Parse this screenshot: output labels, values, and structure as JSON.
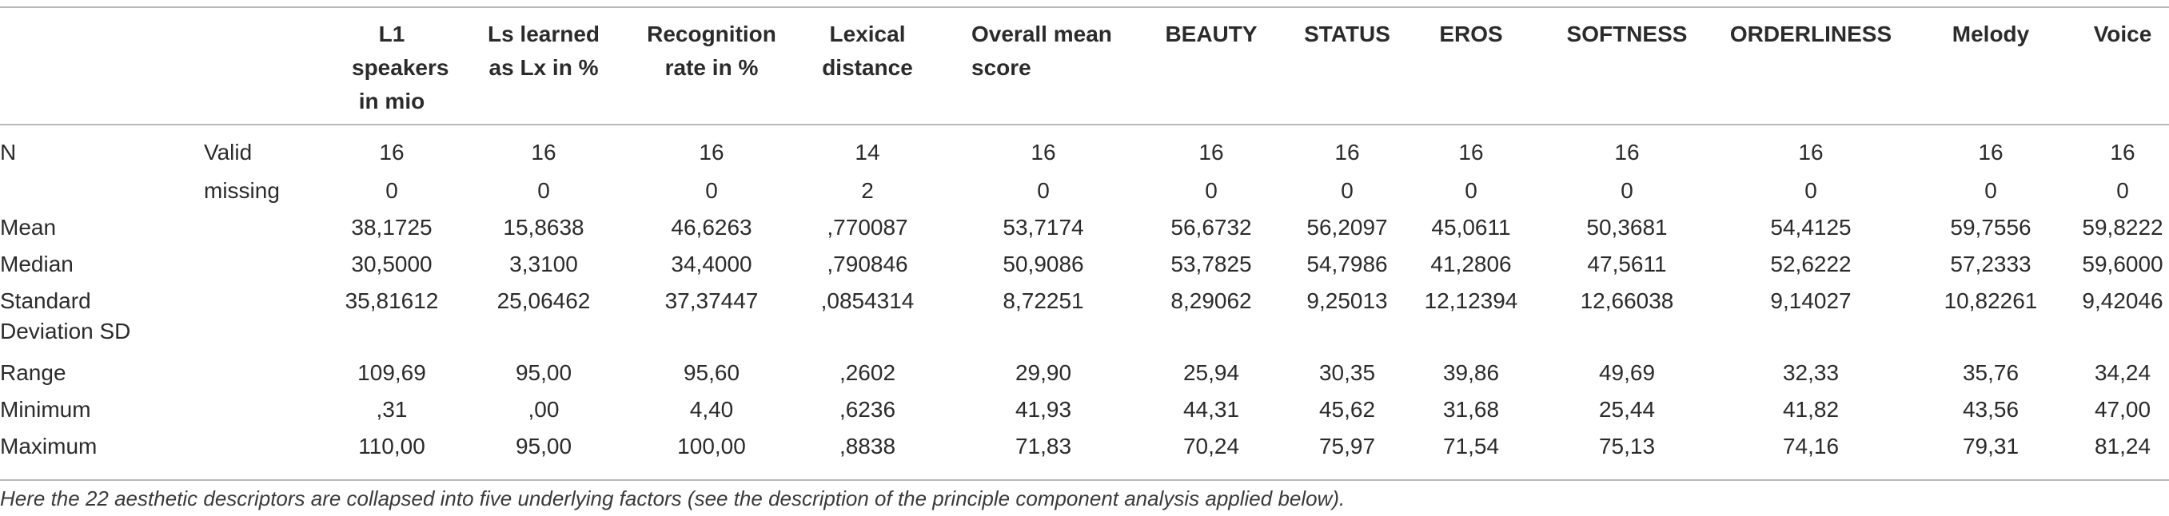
{
  "table": {
    "headers": [
      "L1 speakers in mio",
      "Ls learned as Lx in %",
      "Recognition rate in %",
      "Lexical distance",
      "Overall mean score",
      "BEAUTY",
      "STATUS",
      "EROS",
      "SOFTNESS",
      "ORDERLINESS",
      "Melody",
      "Voice"
    ],
    "rows": [
      {
        "label": "N",
        "sublabel": "Valid",
        "values": [
          "16",
          "16",
          "16",
          "14",
          "16",
          "16",
          "16",
          "16",
          "16",
          "16",
          "16",
          "16"
        ]
      },
      {
        "label": "",
        "sublabel": "missing",
        "values": [
          "0",
          "0",
          "0",
          "2",
          "0",
          "0",
          "0",
          "0",
          "0",
          "0",
          "0",
          "0"
        ]
      },
      {
        "label": "Mean",
        "sublabel": "",
        "values": [
          "38,1725",
          "15,8638",
          "46,6263",
          ",770087",
          "53,7174",
          "56,6732",
          "56,2097",
          "45,0611",
          "50,3681",
          "54,4125",
          "59,7556",
          "59,8222"
        ]
      },
      {
        "label": "Median",
        "sublabel": "",
        "values": [
          "30,5000",
          "3,3100",
          "34,4000",
          ",790846",
          "50,9086",
          "53,7825",
          "54,7986",
          "41,2806",
          "47,5611",
          "52,6222",
          "57,2333",
          "59,6000"
        ]
      },
      {
        "label": "Standard Deviation SD",
        "sublabel": "",
        "values": [
          "35,81612",
          "25,06462",
          "37,37447",
          ",0854314",
          "8,72251",
          "8,29062",
          "9,25013",
          "12,12394",
          "12,66038",
          "9,14027",
          "10,82261",
          "9,42046"
        ]
      },
      {
        "label": "Range",
        "sublabel": "",
        "values": [
          "109,69",
          "95,00",
          "95,60",
          ",2602",
          "29,90",
          "25,94",
          "30,35",
          "39,86",
          "49,69",
          "32,33",
          "35,76",
          "34,24"
        ]
      },
      {
        "label": "Minimum",
        "sublabel": "",
        "values": [
          ",31",
          ",00",
          "4,40",
          ",6236",
          "41,93",
          "44,31",
          "45,62",
          "31,68",
          "25,44",
          "41,82",
          "43,56",
          "47,00"
        ]
      },
      {
        "label": "Maximum",
        "sublabel": "",
        "values": [
          "110,00",
          "95,00",
          "100,00",
          ",8838",
          "71,83",
          "70,24",
          "75,97",
          "71,54",
          "75,13",
          "74,16",
          "79,31",
          "81,24"
        ]
      }
    ],
    "footnote": "Here the 22 aesthetic descriptors are collapsed into five underlying factors (see the description of the principle component analysis applied below)."
  }
}
